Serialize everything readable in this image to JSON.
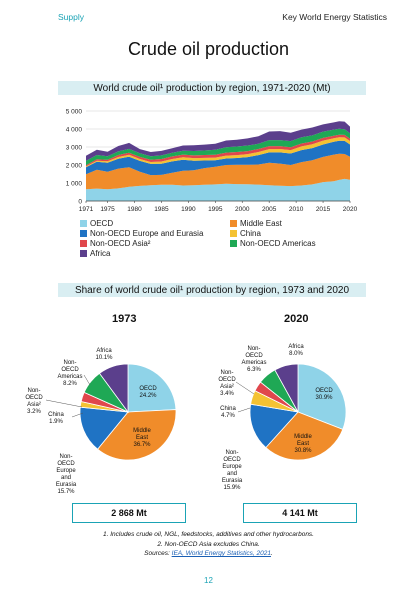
{
  "header": {
    "left": "Supply",
    "right": "Key World Energy Statistics"
  },
  "page_title": "Crude oil production",
  "colors": {
    "OECD": "#8fd3e8",
    "Middle East": "#f08c2a",
    "Non-OECD Europe and Eurasia": "#1f73c4",
    "China": "#f4c233",
    "Non-OECD Asia": "#e0474c",
    "Non-OECD Americas": "#1fa855",
    "Africa": "#5b3f8c"
  },
  "chart_data": [
    {
      "type": "area",
      "title": "World crude oil¹ production by region, 1971-2020 (Mt)",
      "x": [
        1971,
        1973,
        1975,
        1977,
        1979,
        1981,
        1983,
        1985,
        1987,
        1989,
        1991,
        1993,
        1995,
        1997,
        1999,
        2001,
        2003,
        2005,
        2007,
        2009,
        2011,
        2013,
        2015,
        2017,
        2018,
        2019,
        2020
      ],
      "xticks": [
        "1971",
        "1975",
        "1980",
        "1985",
        "1990",
        "1995",
        "2000",
        "2005",
        "2010",
        "2015",
        "2020"
      ],
      "yticks": [
        "0",
        "1 000",
        "2 000",
        "3 000",
        "4 000",
        "5 000"
      ],
      "ylim": [
        0,
        5000
      ],
      "grid": true,
      "series": [
        {
          "name": "OECD",
          "values": [
            650,
            690,
            650,
            700,
            790,
            840,
            870,
            900,
            900,
            860,
            880,
            900,
            920,
            960,
            940,
            930,
            910,
            880,
            850,
            830,
            860,
            920,
            1050,
            1100,
            1170,
            1230,
            1180
          ]
        },
        {
          "name": "Middle East",
          "values": [
            840,
            1050,
            980,
            1100,
            1080,
            780,
            570,
            550,
            670,
            820,
            830,
            930,
            980,
            1040,
            1070,
            1080,
            1120,
            1240,
            1230,
            1170,
            1300,
            1340,
            1400,
            1480,
            1460,
            1380,
            1280
          ]
        },
        {
          "name": "Non-OECD Europe and Eurasia",
          "values": [
            390,
            440,
            500,
            550,
            590,
            610,
            620,
            620,
            630,
            610,
            530,
            420,
            360,
            360,
            380,
            430,
            520,
            580,
            620,
            640,
            670,
            680,
            690,
            710,
            720,
            730,
            680
          ]
        },
        {
          "name": "China",
          "values": [
            40,
            55,
            77,
            94,
            106,
            102,
            106,
            125,
            134,
            138,
            141,
            145,
            150,
            161,
            160,
            165,
            170,
            182,
            187,
            190,
            204,
            209,
            215,
            192,
            190,
            192,
            195
          ]
        },
        {
          "name": "Non-OECD Asia",
          "values": [
            70,
            83,
            90,
            110,
            120,
            120,
            130,
            140,
            145,
            150,
            155,
            160,
            165,
            170,
            170,
            170,
            170,
            170,
            165,
            160,
            160,
            155,
            150,
            145,
            140,
            138,
            130
          ]
        },
        {
          "name": "Non-OECD Americas",
          "values": [
            235,
            235,
            190,
            200,
            210,
            200,
            195,
            200,
            205,
            215,
            240,
            250,
            270,
            300,
            310,
            310,
            290,
            330,
            330,
            340,
            350,
            340,
            350,
            340,
            330,
            320,
            300
          ]
        },
        {
          "name": "Africa",
          "values": [
            290,
            290,
            250,
            300,
            330,
            230,
            230,
            250,
            250,
            290,
            320,
            330,
            340,
            370,
            370,
            390,
            420,
            480,
            500,
            460,
            420,
            440,
            400,
            400,
            420,
            420,
            370
          ]
        }
      ]
    },
    {
      "type": "pie",
      "title": "1973",
      "total": "2 868 Mt",
      "slices": [
        {
          "name": "OECD",
          "value": 24.2,
          "label": [
            "OECD",
            "24.2%"
          ]
        },
        {
          "name": "Middle East",
          "value": 36.7,
          "label": [
            "Middle",
            "East",
            "36.7%"
          ]
        },
        {
          "name": "Non-OECD Europe and Eurasia",
          "value": 15.7,
          "label": [
            "Non-",
            "OECD",
            "Europe",
            "and",
            "Eurasia",
            "15.7%"
          ]
        },
        {
          "name": "China",
          "value": 1.9,
          "label": [
            "China",
            "1.9%"
          ]
        },
        {
          "name": "Non-OECD Asia",
          "value": 3.2,
          "label": [
            "Non-",
            "OECD",
            "Asia²",
            "3.2%"
          ]
        },
        {
          "name": "Non-OECD Americas",
          "value": 8.2,
          "label": [
            "Non-",
            "OECD",
            "Americas",
            "8.2%"
          ]
        },
        {
          "name": "Africa",
          "value": 10.1,
          "label": [
            "Africa",
            "10.1%"
          ]
        }
      ]
    },
    {
      "type": "pie",
      "title": "2020",
      "total": "4  141 Mt",
      "slices": [
        {
          "name": "OECD",
          "value": 30.9,
          "label": [
            "OECD",
            "30.9%"
          ]
        },
        {
          "name": "Middle East",
          "value": 30.8,
          "label": [
            "Middle",
            "East",
            "30.8%"
          ]
        },
        {
          "name": "Non-OECD Europe and Eurasia",
          "value": 15.9,
          "label": [
            "Non-",
            "OECD",
            "Europe",
            "and",
            "Eurasia",
            "15.9%"
          ]
        },
        {
          "name": "China",
          "value": 4.7,
          "label": [
            "China",
            "4.7%"
          ]
        },
        {
          "name": "Non-OECD Asia",
          "value": 3.4,
          "label": [
            "Non-",
            "OECD",
            "Asia²",
            "3.4%"
          ]
        },
        {
          "name": "Non-OECD Americas",
          "value": 6.3,
          "label": [
            "Non-",
            "OECD",
            "Americas",
            "6.3%"
          ]
        },
        {
          "name": "Africa",
          "value": 8.0,
          "label": [
            "Africa",
            "8.0%"
          ]
        }
      ]
    }
  ],
  "legend": [
    "OECD",
    "Middle East",
    "Non-OECD Europe and Eurasia",
    "China",
    "Non-OECD Asia²",
    "Non-OECD Americas",
    "Africa"
  ],
  "section2_title": "Share of world crude oil¹ production by region, 1973 and 2020",
  "notes": {
    "note1": "1. Includes crude oil, NGL, feedstocks, additives and other hydrocarbons.",
    "note2": "2. Non-OECD Asia excludes China.",
    "source_prefix": "Sources: ",
    "source_link": "IEA, World Energy Statistics, 2021",
    "source_suffix": "."
  },
  "page_number": "12"
}
